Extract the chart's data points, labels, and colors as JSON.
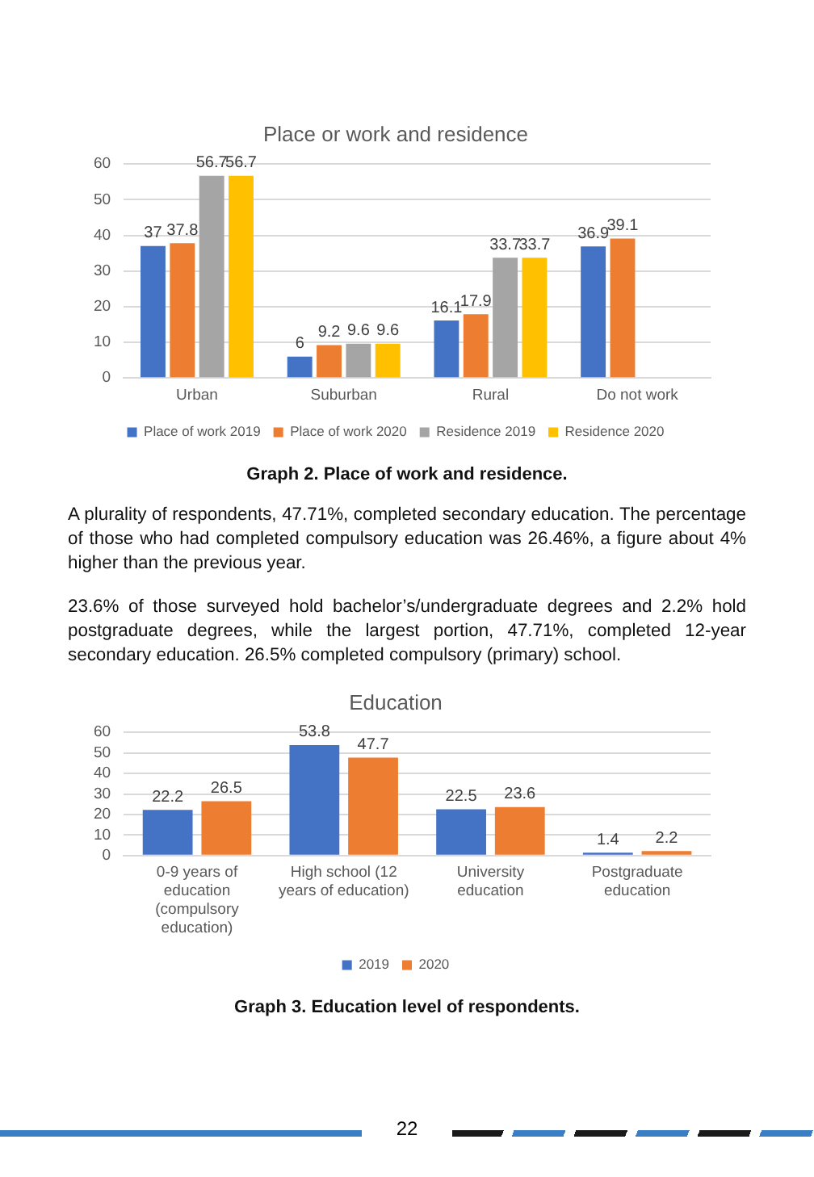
{
  "chart_data": [
    {
      "type": "bar",
      "title": "Place or work and residence",
      "categories": [
        "Urban",
        "Suburban",
        "Rural",
        "Do not work"
      ],
      "series": [
        {
          "name": "Place of work 2019",
          "color": "#4472c4",
          "values": [
            37,
            6,
            16.1,
            36.9
          ]
        },
        {
          "name": "Place of work 2020",
          "color": "#ed7d31",
          "values": [
            37.8,
            9.2,
            17.9,
            39.1
          ]
        },
        {
          "name": "Residence 2019",
          "color": "#a5a5a5",
          "values": [
            56.7,
            9.6,
            33.7,
            null
          ]
        },
        {
          "name": "Residence 2020",
          "color": "#ffc000",
          "values": [
            56.7,
            9.6,
            33.7,
            null
          ]
        }
      ],
      "ylim": [
        0,
        60
      ],
      "yticks": [
        0,
        10,
        20,
        30,
        40,
        50,
        60
      ],
      "grid": "y",
      "legend": "bottom",
      "data_labels": true,
      "annotations": [
        "Graph 2. Place of work and residence.",
        "A plurality of respondents, 47.71%, completed secondary education. The percentage of those who had completed compulsory education was 26.46%, a figure about 4% higher than the previous year.",
        "23.6% of those surveyed hold bachelor’s/undergraduate degrees and 2.2% hold postgraduate degrees, while the largest portion, 47.71%, completed 12-year secondary education. 26.5% completed compulsory (primary) school."
      ]
    },
    {
      "type": "bar",
      "title": "Education",
      "categories": [
        "0-9 years of education (compulsory education)",
        "High school (12 years of education)",
        "University education",
        "Postgraduate education"
      ],
      "series": [
        {
          "name": "2019",
          "color": "#4472c4",
          "values": [
            22.2,
            53.8,
            22.5,
            1.4
          ]
        },
        {
          "name": "2020",
          "color": "#ed7d31",
          "values": [
            26.5,
            47.7,
            23.6,
            2.2
          ]
        }
      ],
      "ylim": [
        0,
        60
      ],
      "yticks": [
        0,
        10,
        20,
        30,
        40,
        50,
        60
      ],
      "grid": "y",
      "legend": "bottom",
      "data_labels": true,
      "annotations": [
        "Graph 3. Education level of respondents.",
        "22"
      ]
    }
  ]
}
